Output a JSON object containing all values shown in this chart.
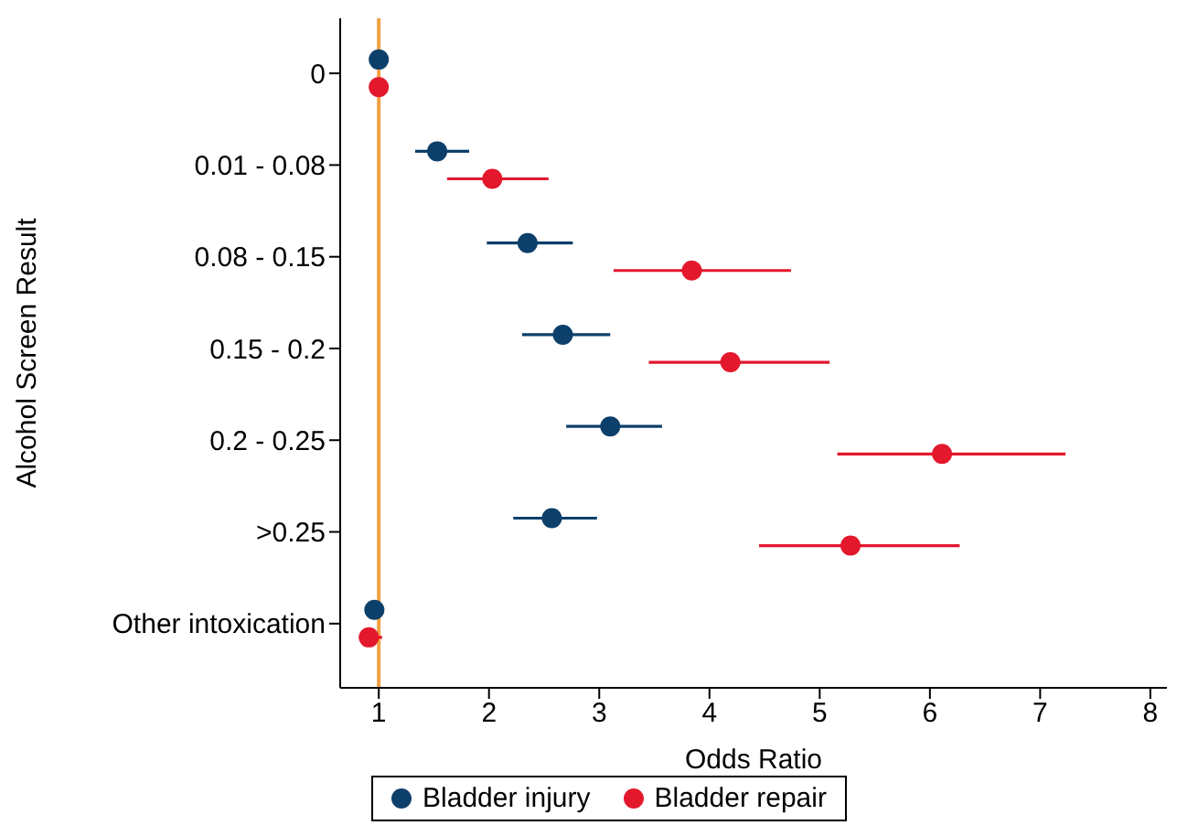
{
  "chart_data": {
    "type": "scatter",
    "orientation": "horizontal",
    "categories": [
      "0",
      "0.01 - 0.08",
      "0.08 - 0.15",
      "0.15 - 0.2",
      "0.2 - 0.25",
      ">0.25",
      "Other intoxication"
    ],
    "xlabel": "Odds Ratio",
    "ylabel": "Alcohol Screen Result",
    "xlim": [
      0.65,
      8.15
    ],
    "xticks": [
      1,
      2,
      3,
      4,
      5,
      6,
      7,
      8
    ],
    "series": [
      {
        "name": "Bladder injury",
        "color": "#0d3f6b",
        "values": [
          1.0,
          1.53,
          2.35,
          2.67,
          3.1,
          2.57,
          0.96
        ],
        "errors": [
          null,
          [
            1.33,
            1.82
          ],
          [
            1.98,
            2.76
          ],
          [
            2.3,
            3.1
          ],
          [
            2.7,
            3.57
          ],
          [
            2.22,
            2.98
          ],
          null
        ]
      },
      {
        "name": "Bladder repair",
        "color": "#e3182d",
        "values": [
          1.0,
          2.03,
          3.84,
          4.19,
          6.11,
          5.28,
          0.91
        ],
        "errors": [
          null,
          [
            1.62,
            2.54
          ],
          [
            3.13,
            4.74
          ],
          [
            3.45,
            5.09
          ],
          [
            5.16,
            7.23
          ],
          [
            4.45,
            6.27
          ],
          [
            0.82,
            1.03
          ]
        ]
      }
    ],
    "ref_lines": [
      {
        "axis": "x",
        "value": 1,
        "color": "#f0a040"
      }
    ],
    "marker": "circle",
    "legend": "bottom",
    "grid": false
  }
}
